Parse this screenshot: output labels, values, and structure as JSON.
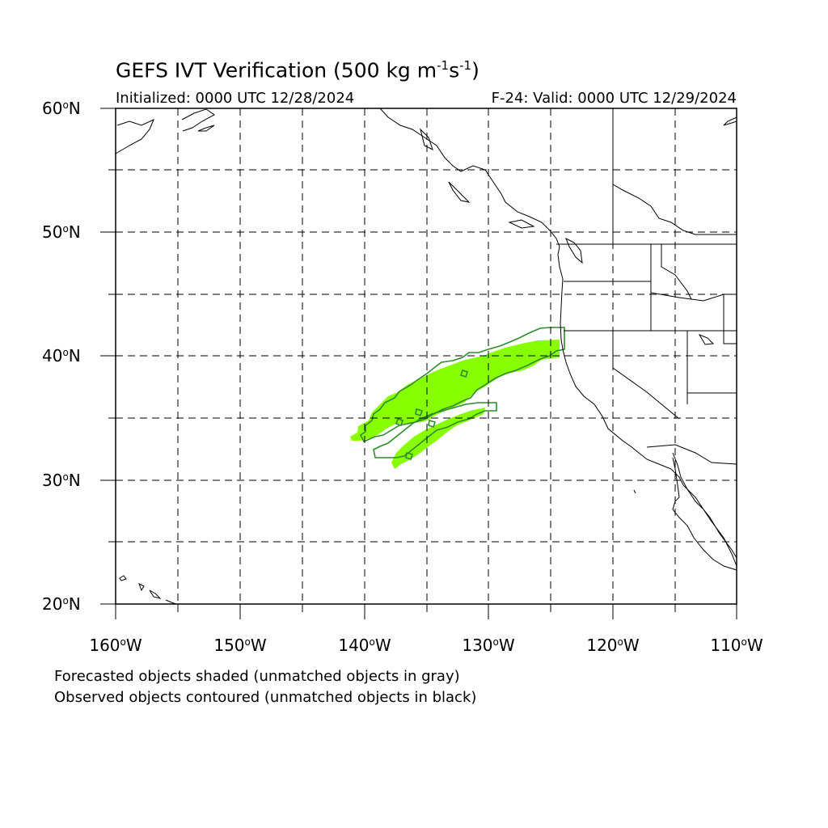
{
  "header": {
    "title_main": "GEFS IVT Verification (500 kg m",
    "title_exp1": "-1",
    "title_mid": "s",
    "title_exp2": "-1",
    "title_end": ")",
    "initialized": "Initialized: 0000 UTC 12/28/2024",
    "valid": "F-24: Valid: 0000 UTC 12/29/2024"
  },
  "axes": {
    "lat_labels": [
      "60",
      "50",
      "40",
      "30",
      "20"
    ],
    "lat_suffix": "N",
    "lon_labels": [
      "160",
      "150",
      "140",
      "130",
      "120",
      "110"
    ],
    "lon_suffix": "W",
    "lat_range": [
      20,
      60
    ],
    "lon_range": [
      -160,
      -110
    ],
    "grid": "dashed every 5 degrees"
  },
  "legend": {
    "line1": "Forecasted objects shaded (unmatched objects in gray)",
    "line2": "Observed objects contoured (unmatched objects in black)"
  },
  "colors": {
    "forecast_fill": "#88ff00",
    "observed_contour": "#2e8b2e",
    "coastline": "#000000"
  }
}
